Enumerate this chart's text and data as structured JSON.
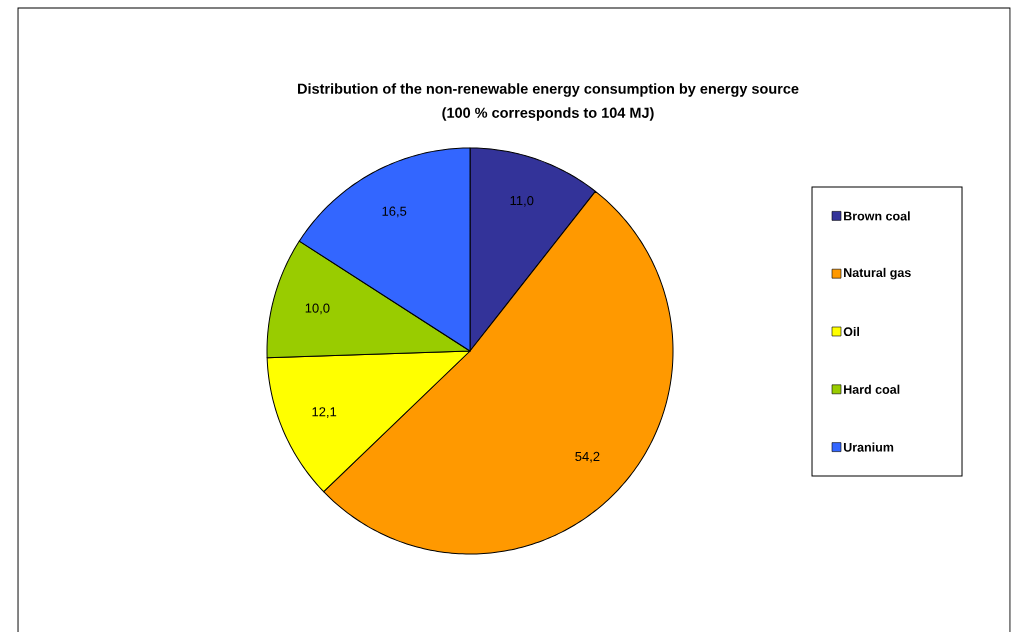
{
  "chart_data": {
    "type": "pie",
    "title": "Distribution of the non-renewable energy consumption by energy source",
    "subtitle": "(100 % corresponds to  104 MJ)",
    "categories": [
      "Brown coal",
      "Natural gas",
      "Oil",
      "Hard coal",
      "Uranium"
    ],
    "values": [
      11.0,
      54.2,
      12.1,
      10.0,
      16.5
    ],
    "value_labels": [
      "11,0",
      "54,2",
      "12,1",
      "10,0",
      "16,5"
    ],
    "colors": [
      "#333399",
      "#ff9900",
      "#ffff00",
      "#99cc00",
      "#3366ff"
    ],
    "legend": "right"
  }
}
